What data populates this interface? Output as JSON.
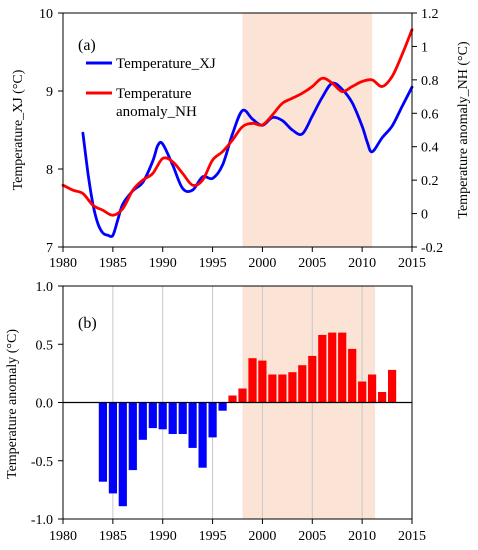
{
  "chart_data": [
    {
      "panel": "(a)",
      "type": "line",
      "xlabel": "",
      "ylabel": "Temperature_XJ (°C)",
      "y2label": "Temperature anomaly_NH (°C)",
      "xlim": [
        1980,
        2015
      ],
      "ylim": [
        7,
        10
      ],
      "y2lim": [
        -0.2,
        1.2
      ],
      "xticks": [
        "1980",
        "1985",
        "1990",
        "1995",
        "2000",
        "2005",
        "2010",
        "2015"
      ],
      "yticks": [
        "7",
        "8",
        "9",
        "10"
      ],
      "y2ticks": [
        "-0.2",
        "0",
        "0.2",
        "0.4",
        "0.6",
        "0.8",
        "1",
        "1.2"
      ],
      "shaded_region": [
        1998,
        2011
      ],
      "legend": "top-left",
      "series": [
        {
          "name": "Temperature_XJ",
          "color": "#0000ff",
          "axis": "left",
          "x": [
            1982,
            1982.5,
            1983,
            1983.5,
            1984,
            1984.5,
            1985,
            1985.5,
            1986,
            1987,
            1988,
            1989,
            1989.5,
            1990,
            1991,
            1992,
            1993,
            1994,
            1995,
            1996,
            1997,
            1998,
            1999,
            2000,
            2001,
            2002,
            2003,
            2004,
            2005,
            2006,
            2007,
            2008,
            2009,
            2010,
            2010.5,
            2011,
            2012,
            2013,
            2014,
            2015
          ],
          "y": [
            8.46,
            7.95,
            7.55,
            7.3,
            7.18,
            7.15,
            7.15,
            7.35,
            7.55,
            7.72,
            7.83,
            8.1,
            8.3,
            8.32,
            8.05,
            7.75,
            7.73,
            7.9,
            7.88,
            8.05,
            8.45,
            8.75,
            8.64,
            8.56,
            8.66,
            8.62,
            8.5,
            8.45,
            8.68,
            8.92,
            9.1,
            9.02,
            8.85,
            8.55,
            8.35,
            8.22,
            8.4,
            8.55,
            8.8,
            9.05
          ]
        },
        {
          "name": "Temperature anomaly_NH",
          "color": "#ff0000",
          "axis": "right",
          "x": [
            1980,
            1981,
            1982,
            1983,
            1984,
            1985,
            1986,
            1987,
            1988,
            1989,
            1990,
            1991,
            1992,
            1993,
            1994,
            1995,
            1996,
            1997,
            1998,
            1999,
            2000,
            2001,
            2002,
            2003,
            2004,
            2005,
            2006,
            2007,
            2008,
            2009,
            2010,
            2011,
            2012,
            2013,
            2014,
            2015
          ],
          "y": [
            0.17,
            0.14,
            0.12,
            0.05,
            0.02,
            -0.01,
            0.03,
            0.14,
            0.2,
            0.24,
            0.33,
            0.31,
            0.24,
            0.17,
            0.2,
            0.32,
            0.37,
            0.44,
            0.52,
            0.54,
            0.53,
            0.59,
            0.66,
            0.69,
            0.72,
            0.76,
            0.81,
            0.78,
            0.73,
            0.76,
            0.79,
            0.8,
            0.76,
            0.82,
            0.95,
            1.1
          ]
        }
      ]
    },
    {
      "panel": "(b)",
      "type": "bar",
      "xlabel": "",
      "ylabel": "Temperature anomaly (°C)",
      "xlim": [
        1980,
        2015
      ],
      "ylim": [
        -1.0,
        1.0
      ],
      "xticks": [
        "1980",
        "1985",
        "1990",
        "1995",
        "2000",
        "2005",
        "2010",
        "2015"
      ],
      "yticks": [
        "-1.0",
        "-0.5",
        "0.0",
        "0.5",
        "1.0"
      ],
      "shaded_region": [
        1998,
        2011.3
      ],
      "grid": "vertical",
      "negative_color": "#0000ff",
      "positive_color": "#ff0000",
      "years": [
        1984,
        1985,
        1986,
        1987,
        1988,
        1989,
        1990,
        1991,
        1992,
        1993,
        1994,
        1995,
        1996,
        1997,
        1998,
        1999,
        2000,
        2001,
        2002,
        2003,
        2004,
        2005,
        2006,
        2007,
        2008,
        2009,
        2010,
        2011,
        2012,
        2013
      ],
      "values": [
        -0.68,
        -0.78,
        -0.89,
        -0.58,
        -0.32,
        -0.22,
        -0.23,
        -0.27,
        -0.27,
        -0.39,
        -0.56,
        -0.3,
        -0.07,
        0.06,
        0.12,
        0.38,
        0.36,
        0.24,
        0.24,
        0.26,
        0.32,
        0.4,
        0.58,
        0.6,
        0.6,
        0.46,
        0.18,
        0.24,
        0.09,
        0.28
      ]
    }
  ]
}
